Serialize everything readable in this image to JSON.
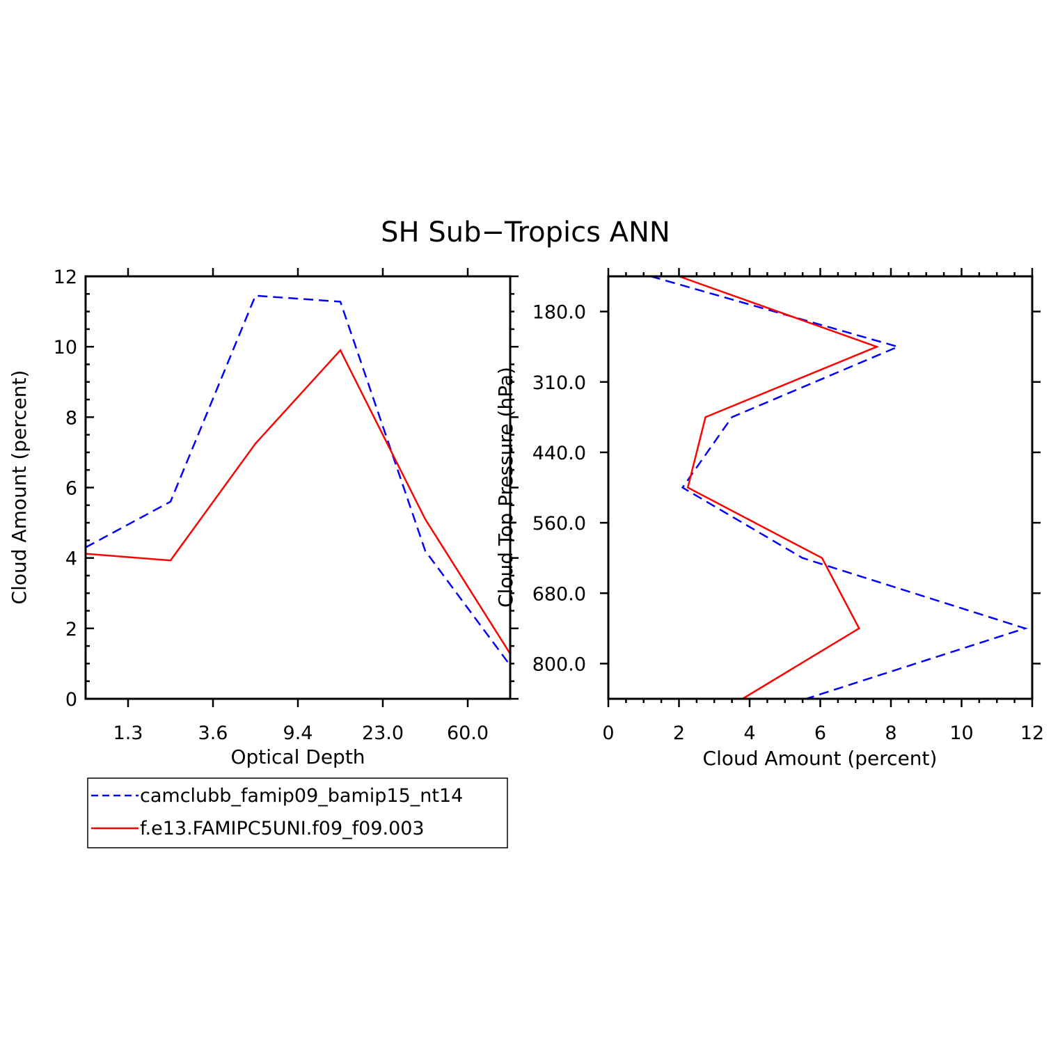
{
  "figure": {
    "title": "SH Sub−Tropics ANN"
  },
  "colors": {
    "series1": "#0000ff",
    "series2": "#ff0000"
  },
  "chart_data": [
    {
      "type": "line",
      "title": "SH Sub−Tropics ANN",
      "xlabel": "Optical Depth",
      "ylabel": "Cloud Amount (percent)",
      "x_index": [
        0,
        1,
        2,
        3,
        4,
        5
      ],
      "xtick_labels": [
        "1.3",
        "3.6",
        "9.4",
        "23.0",
        "60.0"
      ],
      "xtick_index": [
        0.5,
        1.5,
        2.5,
        3.5,
        4.5
      ],
      "xlim": [
        0,
        5
      ],
      "ylim": [
        0,
        12
      ],
      "yticks": [
        0,
        2,
        4,
        6,
        8,
        10,
        12
      ],
      "series": [
        {
          "name": "camclubb_famip09_bamip15_nt14",
          "style": "dashed",
          "color": "#0000ff",
          "x": [
            0,
            1,
            2,
            3,
            4,
            5
          ],
          "y": [
            4.3,
            5.6,
            11.45,
            11.28,
            4.2,
            0.95
          ]
        },
        {
          "name": "f.e13.FAMIPC5UNI.f09_f09.003",
          "style": "solid",
          "color": "#ff0000",
          "x": [
            0,
            1,
            2,
            3,
            4,
            5
          ],
          "y": [
            4.12,
            3.93,
            7.25,
            9.9,
            5.1,
            1.28
          ]
        }
      ]
    },
    {
      "type": "line",
      "xlabel": "Cloud Amount (percent)",
      "ylabel": "Cloud Top Pressure (hPa)",
      "xlim": [
        0,
        12
      ],
      "xticks": [
        0,
        2,
        4,
        6,
        8,
        10,
        12
      ],
      "ytick_labels": [
        "180.0",
        "310.0",
        "440.0",
        "560.0",
        "680.0",
        "800.0"
      ],
      "ytick_index": [
        0.5,
        1.5,
        2.5,
        3.5,
        4.5,
        5.5
      ],
      "ylim_index": [
        0,
        6
      ],
      "series": [
        {
          "name": "camclubb_famip09_bamip15_nt14",
          "style": "dashed",
          "color": "#0000ff",
          "x": [
            1.2,
            8.2,
            3.5,
            2.1,
            5.5,
            11.8,
            5.6
          ],
          "y_index": [
            0,
            1,
            2,
            3,
            4,
            5,
            6
          ]
        },
        {
          "name": "f.e13.FAMIPC5UNI.f09_f09.003",
          "style": "solid",
          "color": "#ff0000",
          "x": [
            2.0,
            7.6,
            2.75,
            2.25,
            6.05,
            7.1,
            3.8
          ],
          "y_index": [
            0,
            1,
            2,
            3,
            4,
            5,
            6
          ]
        }
      ]
    }
  ],
  "legend": {
    "placement": "below-left",
    "items": [
      {
        "label": "camclubb_famip09_bamip15_nt14",
        "style": "dashed",
        "color": "#0000ff"
      },
      {
        "label": "f.e13.FAMIPC5UNI.f09_f09.003",
        "style": "solid",
        "color": "#ff0000"
      }
    ]
  }
}
